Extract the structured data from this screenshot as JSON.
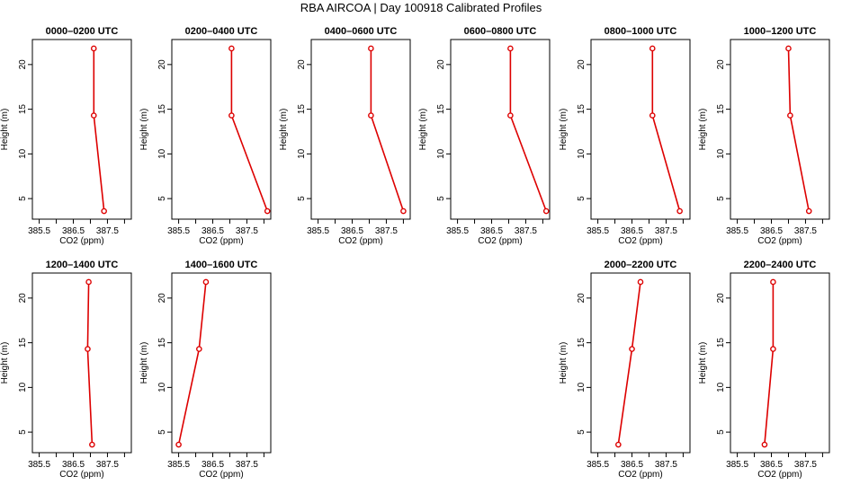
{
  "title": "RBA AIRCOA  |  Day 100918  Calibrated Profiles",
  "colors": {
    "series": "#dd0000",
    "axes": "#000000",
    "background": "#ffffff"
  },
  "chart_data": {
    "type": "line",
    "xlabel": "CO2 (ppm)",
    "ylabel": "Height (m)",
    "xlim": [
      385.3,
      388.2
    ],
    "ylim": [
      2.7,
      22.8
    ],
    "xticks": [
      385.5,
      386,
      386.5,
      387,
      387.5,
      388
    ],
    "xtick_labels": [
      "385.5",
      "",
      "386.5",
      "",
      "387.5",
      ""
    ],
    "yticks": [
      5,
      10,
      15,
      20
    ],
    "ytick_labels": [
      "5",
      "10",
      "15",
      "20"
    ],
    "grid": false,
    "panels": [
      {
        "title": "0000–0200 UTC",
        "x": [
          387.1,
          387.1,
          387.4
        ],
        "y": [
          21.8,
          14.3,
          3.6
        ]
      },
      {
        "title": "0200–0400 UTC",
        "x": [
          387.05,
          387.05,
          388.1
        ],
        "y": [
          21.8,
          14.3,
          3.6
        ]
      },
      {
        "title": "0400–0600 UTC",
        "x": [
          387.05,
          387.05,
          388.0
        ],
        "y": [
          21.8,
          14.3,
          3.6
        ]
      },
      {
        "title": "0600–0800 UTC",
        "x": [
          387.05,
          387.05,
          388.1
        ],
        "y": [
          21.8,
          14.3,
          3.6
        ]
      },
      {
        "title": "0800–1000 UTC",
        "x": [
          387.1,
          387.1,
          387.9
        ],
        "y": [
          21.8,
          14.3,
          3.6
        ]
      },
      {
        "title": "1000–1200 UTC",
        "x": [
          387.0,
          387.05,
          387.6
        ],
        "y": [
          21.8,
          14.3,
          3.6
        ]
      },
      {
        "title": "1200–1400 UTC",
        "x": [
          386.95,
          386.92,
          387.05
        ],
        "y": [
          21.8,
          14.3,
          3.6
        ]
      },
      {
        "title": "1400–1600 UTC",
        "x": [
          386.3,
          386.1,
          385.5
        ],
        "y": [
          21.8,
          14.3,
          3.6
        ]
      },
      {
        "title": "2000–2200 UTC",
        "x": [
          386.75,
          386.5,
          386.1
        ],
        "y": [
          21.8,
          14.3,
          3.6
        ]
      },
      {
        "title": "2200–2400 UTC",
        "x": [
          386.55,
          386.55,
          386.3
        ],
        "y": [
          21.8,
          14.3,
          3.6
        ]
      }
    ]
  }
}
